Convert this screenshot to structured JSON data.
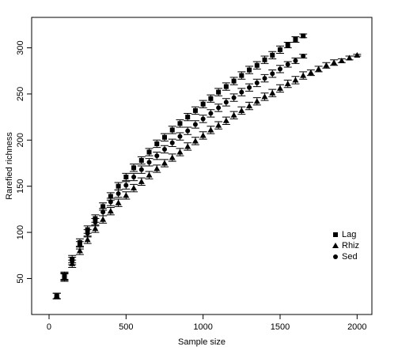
{
  "chart_data": {
    "type": "scatter",
    "xlabel": "Sample size",
    "ylabel": "Rarefied richness",
    "xlim": [
      -113,
      2096
    ],
    "ylim": [
      11,
      333
    ],
    "xticks": [
      0,
      500,
      1000,
      1500,
      2000
    ],
    "yticks": [
      50,
      100,
      150,
      200,
      250,
      300
    ],
    "legend": "right",
    "series": [
      {
        "name": "Lag",
        "color": "#000000",
        "marker": "square",
        "x": [
          50,
          100,
          150,
          200,
          250,
          300,
          350,
          400,
          450,
          500,
          550,
          600,
          650,
          700,
          750,
          800,
          850,
          900,
          950,
          1000,
          1050,
          1100,
          1150,
          1200,
          1250,
          1300,
          1350,
          1400,
          1450,
          1500,
          1550,
          1600,
          1650
        ],
        "values": [
          31,
          53,
          71,
          89,
          103,
          115,
          128,
          139,
          150,
          160,
          170,
          178,
          187,
          196,
          203,
          211,
          218,
          225,
          232,
          239,
          245,
          252,
          258,
          264,
          270,
          276,
          281,
          287,
          292,
          298,
          303,
          309,
          313
        ],
        "errors": [
          3,
          4,
          4,
          4,
          4,
          4,
          4,
          4,
          4,
          4,
          4,
          4,
          4,
          4,
          4,
          4,
          4,
          4,
          4,
          4,
          4,
          4,
          4,
          4,
          4,
          4,
          4,
          4,
          4,
          4,
          3,
          3,
          2
        ]
      },
      {
        "name": "Rhiz",
        "color": "#000000",
        "marker": "triangle",
        "x": [
          50,
          100,
          150,
          200,
          250,
          300,
          350,
          400,
          450,
          500,
          550,
          600,
          650,
          700,
          750,
          800,
          850,
          900,
          950,
          1000,
          1050,
          1100,
          1150,
          1200,
          1250,
          1300,
          1350,
          1400,
          1450,
          1500,
          1550,
          1600,
          1650,
          1700,
          1750,
          1800,
          1850,
          1900,
          1950,
          2000
        ],
        "values": [
          31,
          51,
          66,
          80,
          92,
          104,
          114,
          123,
          132,
          140,
          148,
          155,
          162,
          169,
          175,
          181,
          187,
          193,
          199,
          205,
          211,
          216,
          221,
          227,
          232,
          237,
          242,
          247,
          251,
          256,
          261,
          265,
          270,
          273,
          277,
          281,
          284,
          286,
          289,
          292
        ],
        "errors": [
          3,
          4,
          4,
          4,
          4,
          4,
          4,
          4,
          4,
          4,
          4,
          4,
          4,
          4,
          4,
          4,
          4,
          4,
          4,
          4,
          4,
          4,
          4,
          4,
          4,
          4,
          4,
          4,
          4,
          4,
          4,
          4,
          4,
          3,
          3,
          3,
          3,
          2,
          2,
          1
        ]
      },
      {
        "name": "Sed",
        "color": "#000000",
        "marker": "circle",
        "x": [
          50,
          100,
          150,
          200,
          250,
          300,
          350,
          400,
          450,
          500,
          550,
          600,
          650,
          700,
          750,
          800,
          850,
          900,
          950,
          1000,
          1050,
          1100,
          1150,
          1200,
          1250,
          1300,
          1350,
          1400,
          1450,
          1500,
          1550,
          1600,
          1650
        ],
        "values": [
          31,
          52,
          69,
          86,
          99,
          111,
          122,
          133,
          142,
          151,
          160,
          168,
          176,
          183,
          190,
          197,
          204,
          210,
          217,
          223,
          229,
          235,
          241,
          246,
          252,
          257,
          262,
          267,
          272,
          277,
          282,
          286,
          291
        ],
        "errors": [
          3,
          4,
          4,
          4,
          4,
          4,
          4,
          4,
          4,
          4,
          4,
          4,
          4,
          4,
          4,
          4,
          4,
          4,
          4,
          4,
          4,
          4,
          4,
          4,
          4,
          4,
          4,
          4,
          4,
          4,
          3,
          3,
          2
        ]
      }
    ]
  }
}
